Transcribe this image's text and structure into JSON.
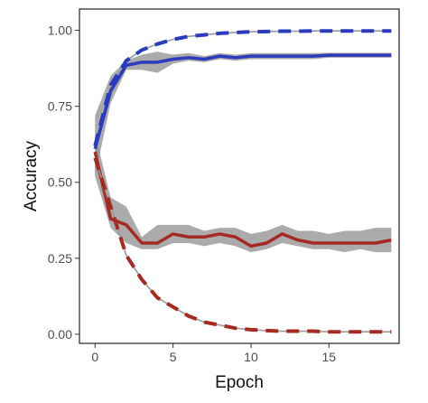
{
  "chart_data": {
    "type": "line",
    "title": "",
    "xlabel": "Epoch",
    "ylabel": "Accuracy",
    "xlim": [
      -1,
      19.5
    ],
    "ylim": [
      -0.03,
      1.07
    ],
    "xticks": [
      0,
      5,
      10,
      15
    ],
    "xtick_labels": [
      "0",
      "5",
      "10",
      "15"
    ],
    "yticks": [
      0.0,
      0.25,
      0.5,
      0.75,
      1.0
    ],
    "ytick_labels": [
      "0.00",
      "0.25",
      "0.50",
      "0.75",
      "1.00"
    ],
    "grid": false,
    "legend": "none",
    "x": [
      0,
      1,
      2,
      3,
      4,
      5,
      6,
      7,
      8,
      9,
      10,
      11,
      12,
      13,
      14,
      15,
      16,
      17,
      18,
      19
    ],
    "series": [
      {
        "color": "#2a3bbd",
        "dash": "dashed",
        "values": [
          0.62,
          0.82,
          0.9,
          0.935,
          0.955,
          0.97,
          0.98,
          0.985,
          0.99,
          0.993,
          0.995,
          0.996,
          0.997,
          0.997,
          0.998,
          0.998,
          0.998,
          0.998,
          0.998,
          0.998
        ]
      },
      {
        "color": "#2a3bbd",
        "dash": "solid",
        "values": [
          0.61,
          0.8,
          0.885,
          0.895,
          0.895,
          0.905,
          0.91,
          0.905,
          0.915,
          0.91,
          0.915,
          0.915,
          0.915,
          0.915,
          0.915,
          0.918,
          0.918,
          0.918,
          0.918,
          0.918
        ],
        "lower": [
          0.52,
          0.76,
          0.87,
          0.87,
          0.86,
          0.89,
          0.9,
          0.895,
          0.905,
          0.9,
          0.905,
          0.905,
          0.905,
          0.905,
          0.905,
          0.91,
          0.91,
          0.91,
          0.91,
          0.91
        ],
        "upper": [
          0.72,
          0.85,
          0.9,
          0.92,
          0.93,
          0.92,
          0.925,
          0.915,
          0.925,
          0.92,
          0.925,
          0.925,
          0.925,
          0.925,
          0.925,
          0.926,
          0.926,
          0.926,
          0.926,
          0.926
        ]
      },
      {
        "color": "#a52a22",
        "dash": "solid",
        "values": [
          0.6,
          0.38,
          0.36,
          0.3,
          0.3,
          0.33,
          0.32,
          0.32,
          0.33,
          0.32,
          0.29,
          0.3,
          0.33,
          0.31,
          0.3,
          0.3,
          0.3,
          0.3,
          0.3,
          0.31
        ],
        "lower": [
          0.52,
          0.35,
          0.3,
          0.28,
          0.28,
          0.3,
          0.3,
          0.29,
          0.3,
          0.29,
          0.27,
          0.28,
          0.3,
          0.29,
          0.28,
          0.28,
          0.27,
          0.28,
          0.27,
          0.27
        ],
        "upper": [
          0.66,
          0.45,
          0.42,
          0.32,
          0.36,
          0.36,
          0.36,
          0.34,
          0.35,
          0.35,
          0.33,
          0.34,
          0.36,
          0.34,
          0.34,
          0.33,
          0.34,
          0.34,
          0.35,
          0.35
        ]
      },
      {
        "color": "#a52a22",
        "dash": "dashed",
        "values": [
          0.58,
          0.42,
          0.26,
          0.18,
          0.12,
          0.09,
          0.06,
          0.04,
          0.03,
          0.02,
          0.015,
          0.012,
          0.01,
          0.01,
          0.01,
          0.008,
          0.008,
          0.008,
          0.008,
          0.008
        ]
      }
    ]
  }
}
